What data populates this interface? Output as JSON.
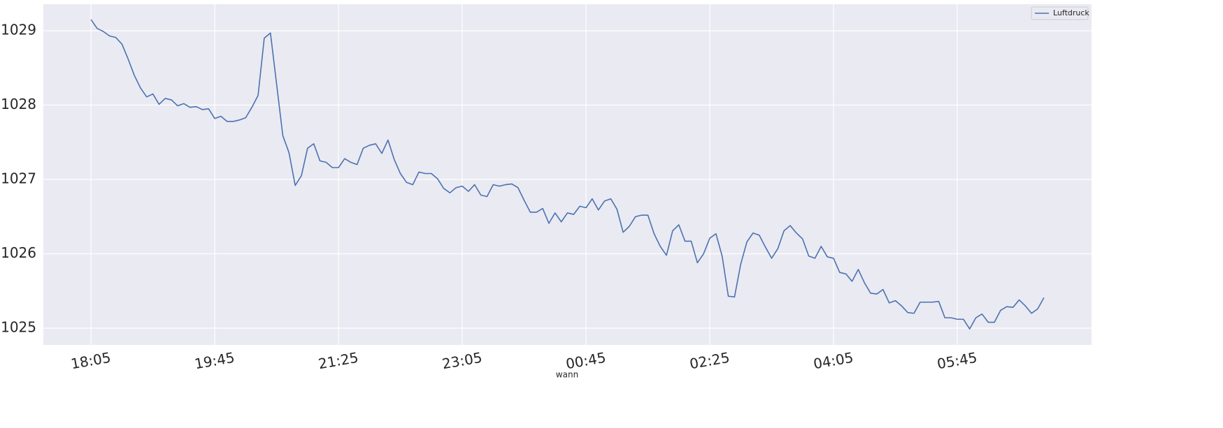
{
  "chart_data": {
    "type": "line",
    "x_label": "wann",
    "categories": [
      "18:05",
      null,
      null,
      null,
      null,
      null,
      null,
      null,
      null,
      null,
      null,
      null,
      null,
      null,
      null,
      null,
      null,
      null,
      null,
      null,
      "19:45",
      null,
      null,
      null,
      null,
      null,
      null,
      null,
      null,
      null,
      null,
      null,
      null,
      null,
      null,
      null,
      null,
      null,
      null,
      null,
      "21:25",
      null,
      null,
      null,
      null,
      null,
      null,
      null,
      null,
      null,
      null,
      null,
      null,
      null,
      null,
      null,
      null,
      null,
      null,
      null,
      "23:05",
      null,
      null,
      null,
      null,
      null,
      null,
      null,
      null,
      null,
      null,
      null,
      null,
      null,
      null,
      null,
      null,
      null,
      null,
      null,
      "00:45",
      null,
      null,
      null,
      null,
      null,
      null,
      null,
      null,
      null,
      null,
      null,
      null,
      null,
      null,
      null,
      null,
      null,
      null,
      null,
      "02:25",
      null,
      null,
      null,
      null,
      null,
      null,
      null,
      null,
      null,
      null,
      null,
      null,
      null,
      null,
      null,
      null,
      null,
      null,
      null,
      "04:05",
      null,
      null,
      null,
      null,
      null,
      null,
      null,
      null,
      null,
      null,
      null,
      null,
      null,
      null,
      null,
      null,
      null,
      null,
      null,
      "05:45",
      null,
      null,
      null,
      null,
      null,
      null,
      null,
      null,
      null,
      null,
      null,
      null,
      null,
      null
    ],
    "series": [
      {
        "name": "Luftdruck",
        "color": "#4c72b0",
        "values": [
          1029.15,
          1029.03,
          1028.99,
          1028.93,
          1028.91,
          1028.82,
          1028.62,
          1028.4,
          1028.23,
          1028.11,
          1028.15,
          1028.01,
          1028.09,
          1028.07,
          1027.99,
          1028.02,
          1027.97,
          1027.98,
          1027.94,
          1027.95,
          1027.82,
          1027.85,
          1027.78,
          1027.78,
          1027.8,
          1027.83,
          1027.97,
          1028.13,
          1028.9,
          1028.97,
          1028.28,
          1027.59,
          1027.36,
          1026.92,
          1027.05,
          1027.42,
          1027.48,
          1027.25,
          1027.23,
          1027.16,
          1027.16,
          1027.28,
          1027.23,
          1027.2,
          1027.42,
          1027.46,
          1027.48,
          1027.35,
          1027.53,
          1027.27,
          1027.08,
          1026.96,
          1026.93,
          1027.1,
          1027.08,
          1027.08,
          1027.01,
          1026.88,
          1026.82,
          1026.89,
          1026.91,
          1026.84,
          1026.93,
          1026.79,
          1026.77,
          1026.93,
          1026.91,
          1026.93,
          1026.94,
          1026.89,
          1026.72,
          1026.56,
          1026.56,
          1026.61,
          1026.41,
          1026.55,
          1026.43,
          1026.55,
          1026.53,
          1026.64,
          1026.62,
          1026.74,
          1026.59,
          1026.71,
          1026.74,
          1026.6,
          1026.29,
          1026.37,
          1026.5,
          1026.52,
          1026.52,
          1026.27,
          1026.1,
          1025.98,
          1026.31,
          1026.39,
          1026.17,
          1026.17,
          1025.88,
          1026.0,
          1026.21,
          1026.27,
          1025.97,
          1025.43,
          1025.42,
          1025.86,
          1026.16,
          1026.28,
          1026.25,
          1026.09,
          1025.94,
          1026.07,
          1026.31,
          1026.38,
          1026.28,
          1026.2,
          1025.97,
          1025.94,
          1026.1,
          1025.96,
          1025.94,
          1025.75,
          1025.73,
          1025.63,
          1025.79,
          1025.61,
          1025.47,
          1025.46,
          1025.52,
          1025.34,
          1025.37,
          1025.3,
          1025.21,
          1025.2,
          1025.35,
          1025.35,
          1025.35,
          1025.36,
          1025.14,
          1025.14,
          1025.12,
          1025.12,
          1024.99,
          1025.14,
          1025.19,
          1025.08,
          1025.08,
          1025.24,
          1025.29,
          1025.28,
          1025.38,
          1025.3,
          1025.2,
          1025.26,
          1025.41
        ]
      }
    ],
    "ylim": [
      1024.775,
      1029.357
    ],
    "yticks": [
      1025,
      1026,
      1027,
      1028,
      1029
    ],
    "grid": true,
    "legend": "upper right",
    "background": "#eaeaf2"
  }
}
